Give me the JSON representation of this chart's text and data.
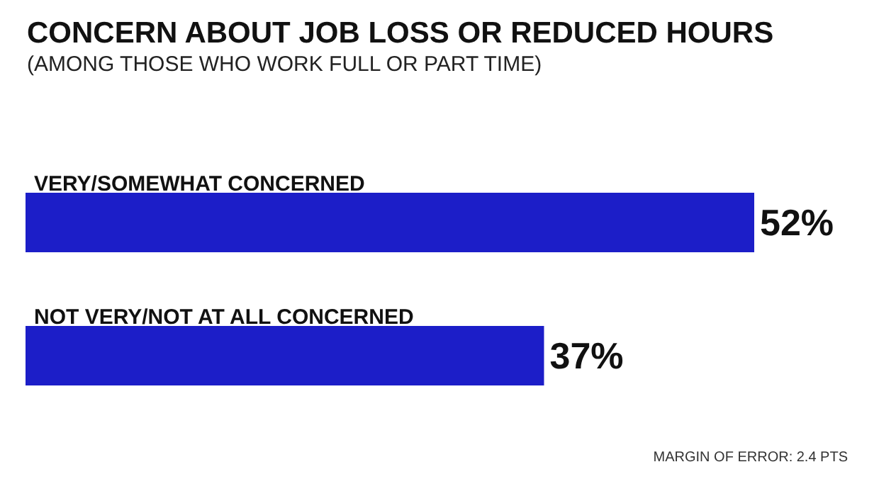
{
  "chart_data": {
    "type": "bar",
    "orientation": "horizontal",
    "title": "CONCERN ABOUT JOB LOSS OR REDUCED HOURS",
    "subtitle": "(AMONG THOSE WHO WORK FULL OR PART TIME)",
    "categories": [
      "VERY/SOMEWHAT CONCERNED",
      "NOT VERY/NOT AT ALL CONCERNED"
    ],
    "values": [
      52,
      37
    ],
    "color": "#1c1ec8",
    "value_labels": [
      "52%",
      "37%"
    ],
    "annotations": [
      "MARGIN OF ERROR: 2.4 PTS"
    ]
  }
}
